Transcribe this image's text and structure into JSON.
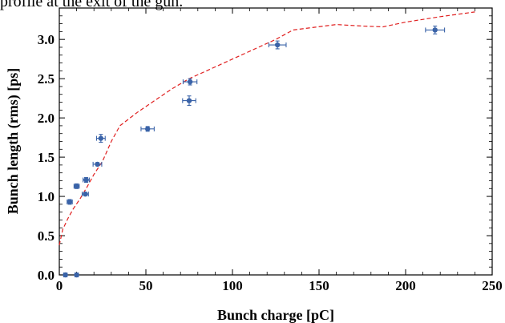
{
  "top_caption": "profile at the exit of the gun.",
  "chart_data": {
    "type": "scatter",
    "title": "",
    "xlabel": "Bunch charge [pC]",
    "ylabel": "Bunch length (rms) [ps]",
    "xlim": [
      0,
      250
    ],
    "ylim": [
      0,
      3.4
    ],
    "x_ticks": [
      "0",
      "50",
      "100",
      "150",
      "200",
      "250"
    ],
    "y_ticks": [
      "0.0",
      "0.5",
      "1.0",
      "1.5",
      "2.0",
      "2.5",
      "3.0"
    ],
    "grid": false,
    "series": [
      {
        "kind": "points_with_errorbars",
        "color": "#3a63a8",
        "points": [
          {
            "x": 3.5,
            "y": 0.0,
            "xerr": 1.0,
            "yerr": 0.0
          },
          {
            "x": 10.0,
            "y": 0.0,
            "xerr": 1.0,
            "yerr": 0.0
          },
          {
            "x": 6.0,
            "y": 0.93,
            "xerr": 1.5,
            "yerr": 0.03
          },
          {
            "x": 10.0,
            "y": 1.13,
            "xerr": 1.5,
            "yerr": 0.03
          },
          {
            "x": 15.0,
            "y": 1.03,
            "xerr": 1.8,
            "yerr": 0.02
          },
          {
            "x": 15.5,
            "y": 1.21,
            "xerr": 1.8,
            "yerr": 0.03
          },
          {
            "x": 22.0,
            "y": 1.41,
            "xerr": 2.5,
            "yerr": 0.02
          },
          {
            "x": 24.0,
            "y": 1.74,
            "xerr": 2.5,
            "yerr": 0.05
          },
          {
            "x": 51.0,
            "y": 1.86,
            "xerr": 3.8,
            "yerr": 0.03
          },
          {
            "x": 75.0,
            "y": 2.22,
            "xerr": 3.8,
            "yerr": 0.06
          },
          {
            "x": 75.5,
            "y": 2.46,
            "xerr": 4.0,
            "yerr": 0.04
          },
          {
            "x": 126.0,
            "y": 2.93,
            "xerr": 5.0,
            "yerr": 0.05
          },
          {
            "x": 217.0,
            "y": 3.12,
            "xerr": 5.5,
            "yerr": 0.05
          }
        ]
      },
      {
        "kind": "dashed_line",
        "color": "#e02020",
        "x": [
          0,
          2,
          5,
          8,
          12,
          16,
          20,
          25,
          30,
          35,
          45,
          55,
          65,
          75,
          85,
          100,
          110,
          125,
          135,
          160,
          175,
          187,
          200,
          220,
          240
        ],
        "y": [
          0.38,
          0.58,
          0.72,
          0.84,
          0.97,
          1.12,
          1.28,
          1.45,
          1.7,
          1.9,
          2.07,
          2.22,
          2.37,
          2.5,
          2.6,
          2.75,
          2.85,
          3.0,
          3.12,
          3.19,
          3.17,
          3.16,
          3.22,
          3.29,
          3.35
        ]
      }
    ]
  }
}
